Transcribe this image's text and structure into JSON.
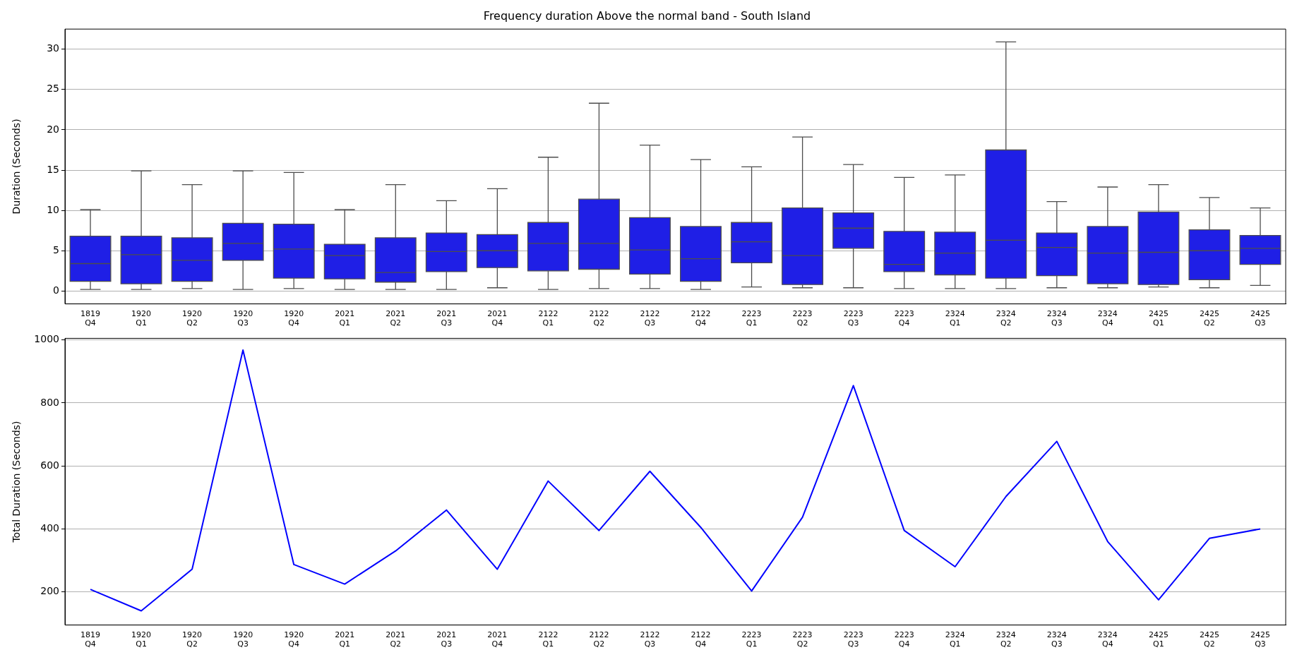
{
  "chart_data": [
    {
      "type": "box",
      "title": "Frequency duration Above the normal band - South Island",
      "ylabel": "Duration (Seconds)",
      "color": "#1f1fe6",
      "grid": "y",
      "ylim": [
        -1.6,
        32.5
      ],
      "yticks": [
        0,
        5,
        10,
        15,
        20,
        25,
        30
      ],
      "categories": [
        "1819\nQ4",
        "1920\nQ1",
        "1920\nQ2",
        "1920\nQ3",
        "1920\nQ4",
        "2021\nQ1",
        "2021\nQ2",
        "2021\nQ3",
        "2021\nQ4",
        "2122\nQ1",
        "2122\nQ2",
        "2122\nQ3",
        "2122\nQ4",
        "2223\nQ1",
        "2223\nQ2",
        "2223\nQ3",
        "2223\nQ4",
        "2324\nQ1",
        "2324\nQ2",
        "2324\nQ3",
        "2324\nQ4",
        "2425\nQ1",
        "2425\nQ2",
        "2425\nQ3"
      ],
      "boxes": [
        {
          "low": 0.2,
          "q1": 1.2,
          "median": 3.4,
          "q3": 6.8,
          "high": 10.1
        },
        {
          "low": 0.2,
          "q1": 0.9,
          "median": 4.5,
          "q3": 6.8,
          "high": 14.9
        },
        {
          "low": 0.3,
          "q1": 1.2,
          "median": 3.8,
          "q3": 6.6,
          "high": 13.2
        },
        {
          "low": 0.2,
          "q1": 3.8,
          "median": 5.9,
          "q3": 8.4,
          "high": 14.9
        },
        {
          "low": 0.3,
          "q1": 1.6,
          "median": 5.2,
          "q3": 8.3,
          "high": 14.7
        },
        {
          "low": 0.2,
          "q1": 1.5,
          "median": 4.4,
          "q3": 5.8,
          "high": 10.1
        },
        {
          "low": 0.2,
          "q1": 1.1,
          "median": 2.3,
          "q3": 6.6,
          "high": 13.2
        },
        {
          "low": 0.2,
          "q1": 2.4,
          "median": 4.9,
          "q3": 7.2,
          "high": 11.2
        },
        {
          "low": 0.4,
          "q1": 2.9,
          "median": 5.0,
          "q3": 7.0,
          "high": 12.7
        },
        {
          "low": 0.2,
          "q1": 2.5,
          "median": 5.9,
          "q3": 8.5,
          "high": 16.6
        },
        {
          "low": 0.3,
          "q1": 2.7,
          "median": 5.9,
          "q3": 11.4,
          "high": 23.3
        },
        {
          "low": 0.3,
          "q1": 2.1,
          "median": 5.1,
          "q3": 9.1,
          "high": 18.1
        },
        {
          "low": 0.2,
          "q1": 1.2,
          "median": 4.0,
          "q3": 8.0,
          "high": 16.3
        },
        {
          "low": 0.5,
          "q1": 3.5,
          "median": 6.1,
          "q3": 8.5,
          "high": 15.4
        },
        {
          "low": 0.4,
          "q1": 0.8,
          "median": 4.4,
          "q3": 10.3,
          "high": 19.1
        },
        {
          "low": 0.4,
          "q1": 5.3,
          "median": 7.8,
          "q3": 9.7,
          "high": 15.7
        },
        {
          "low": 0.3,
          "q1": 2.4,
          "median": 3.3,
          "q3": 7.4,
          "high": 14.1
        },
        {
          "low": 0.3,
          "q1": 2.0,
          "median": 4.7,
          "q3": 7.3,
          "high": 14.4
        },
        {
          "low": 0.3,
          "q1": 1.6,
          "median": 6.3,
          "q3": 17.5,
          "high": 30.9
        },
        {
          "low": 0.4,
          "q1": 1.9,
          "median": 5.4,
          "q3": 7.2,
          "high": 11.1
        },
        {
          "low": 0.4,
          "q1": 0.9,
          "median": 4.7,
          "q3": 8.0,
          "high": 12.9
        },
        {
          "low": 0.5,
          "q1": 0.8,
          "median": 4.8,
          "q3": 9.8,
          "high": 13.2
        },
        {
          "low": 0.4,
          "q1": 1.4,
          "median": 5.0,
          "q3": 7.6,
          "high": 11.6
        },
        {
          "low": 0.7,
          "q1": 3.3,
          "median": 5.3,
          "q3": 6.9,
          "high": 10.3
        }
      ]
    },
    {
      "type": "line",
      "ylabel": "Total Duration (Seconds)",
      "color": "#0000ff",
      "marker": "none",
      "grid": "y",
      "ylim": [
        95,
        1005
      ],
      "yticks": [
        200,
        400,
        600,
        800,
        1000
      ],
      "categories": [
        "1819\nQ4",
        "1920\nQ1",
        "1920\nQ2",
        "1920\nQ3",
        "1920\nQ4",
        "2021\nQ1",
        "2021\nQ2",
        "2021\nQ3",
        "2021\nQ4",
        "2122\nQ1",
        "2122\nQ2",
        "2122\nQ3",
        "2122\nQ4",
        "2223\nQ1",
        "2223\nQ2",
        "2223\nQ3",
        "2223\nQ4",
        "2324\nQ1",
        "2324\nQ2",
        "2324\nQ3",
        "2324\nQ4",
        "2425\nQ1",
        "2425\nQ2",
        "2425\nQ3"
      ],
      "values": [
        208,
        140,
        272,
        968,
        287,
        225,
        330,
        460,
        272,
        552,
        395,
        583,
        405,
        203,
        437,
        855,
        395,
        280,
        503,
        678,
        360,
        175,
        370,
        400
      ]
    }
  ]
}
